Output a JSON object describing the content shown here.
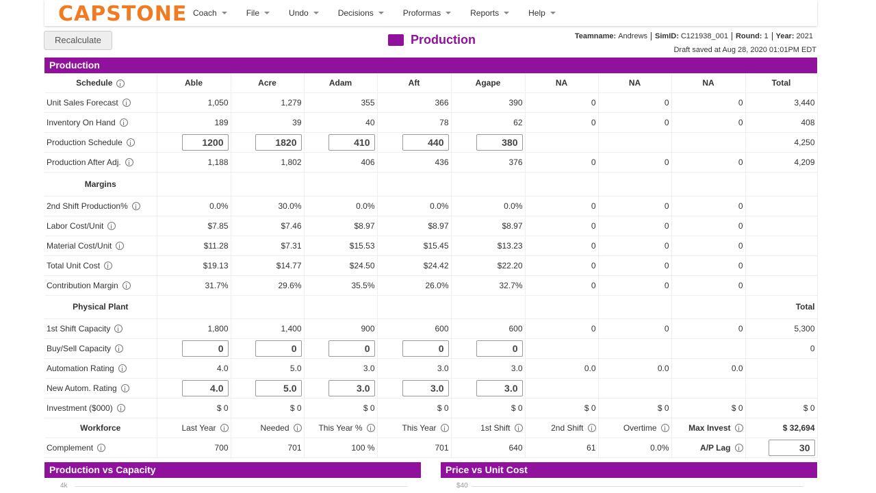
{
  "nav": {
    "logo": "CAPSTONE",
    "menu": [
      "Coach",
      "File",
      "Undo",
      "Decisions",
      "Proformas",
      "Reports",
      "Help"
    ]
  },
  "toolbar": {
    "button": "Recalculate",
    "page_title": "Production",
    "team_info": [
      {
        "label": "Teamname:",
        "value": "Andrews"
      },
      {
        "label": "SimID:",
        "value": "C121938_001"
      },
      {
        "label": "Round:",
        "value": "1"
      },
      {
        "label": "Year:",
        "value": "2021"
      }
    ],
    "saved": "Draft saved at Aug 28, 2020 01:01PM EDT"
  },
  "panel": {
    "title": "Production"
  },
  "table": {
    "sections": [
      {
        "title": "Schedule",
        "header": [
          "Able",
          "Acre",
          "Adam",
          "Aft",
          "Agape",
          "NA",
          "NA",
          "NA",
          "Total"
        ],
        "rows": [
          {
            "label": "Unit Sales Forecast",
            "cells": [
              "1,050",
              "1,279",
              "355",
              "366",
              "390",
              "0",
              "0",
              "0",
              "3,440"
            ]
          },
          {
            "label": "Inventory On Hand",
            "cells": [
              "189",
              "39",
              "40",
              "78",
              "62",
              "0",
              "0",
              "0",
              "408"
            ]
          },
          {
            "label": "Production Schedule",
            "cells": [
              "1200",
              "1820",
              "410",
              "440",
              "380",
              null,
              null,
              null,
              "4,250"
            ],
            "input_columns": [
              0,
              1,
              2,
              3,
              4
            ]
          },
          {
            "label": "Production After Adj.",
            "cells": [
              "1,188",
              "1,802",
              "406",
              "436",
              "376",
              "0",
              "0",
              "0",
              "4,209"
            ]
          }
        ]
      },
      {
        "title": "Margins",
        "rows": [
          {
            "label": "2nd Shift Production%",
            "cells": [
              "0.0%",
              "30.0%",
              "0.0%",
              "0.0%",
              "0.0%",
              "0",
              "0",
              "0",
              null
            ]
          },
          {
            "label": "Labor Cost/Unit",
            "cells": [
              "$7.85",
              "$7.46",
              "$8.97",
              "$8.97",
              "$8.97",
              "0",
              "0",
              "0",
              null
            ]
          },
          {
            "label": "Material Cost/Unit",
            "cells": [
              "$11.28",
              "$7.31",
              "$15.53",
              "$15.45",
              "$13.23",
              "0",
              "0",
              "0",
              null
            ]
          },
          {
            "label": "Total Unit Cost",
            "cells": [
              "$19.13",
              "$14.77",
              "$24.50",
              "$24.42",
              "$22.20",
              "0",
              "0",
              "0",
              null
            ]
          },
          {
            "label": "Contribution Margin",
            "cells": [
              "31.7%",
              "29.6%",
              "35.5%",
              "26.0%",
              "32.7%",
              "0",
              "0",
              "0",
              null
            ]
          }
        ]
      },
      {
        "title": "Physical Plant",
        "header": [
          null,
          null,
          null,
          null,
          null,
          null,
          null,
          null,
          "Total"
        ],
        "rows": [
          {
            "label": "1st Shift Capacity",
            "cells": [
              "1,800",
              "1,400",
              "900",
              "600",
              "600",
              "0",
              "0",
              "0",
              "5,300"
            ]
          },
          {
            "label": "Buy/Sell Capacity",
            "cells": [
              "0",
              "0",
              "0",
              "0",
              "0",
              null,
              null,
              null,
              "0"
            ],
            "input_columns": [
              0,
              1,
              2,
              3,
              4
            ]
          },
          {
            "label": "Automation Rating",
            "cells": [
              "4.0",
              "5.0",
              "3.0",
              "3.0",
              "3.0",
              "0.0",
              "0.0",
              "0.0",
              null
            ]
          },
          {
            "label": "New Autom. Rating",
            "cells": [
              "4.0",
              "5.0",
              "3.0",
              "3.0",
              "3.0",
              null,
              null,
              null,
              null
            ],
            "input_columns": [
              0,
              1,
              2,
              3,
              4
            ]
          },
          {
            "label": "Investment ($000)",
            "cells": [
              "$ 0",
              "$ 0",
              "$ 0",
              "$ 0",
              "$ 0",
              "$ 0",
              "$ 0",
              "$ 0",
              "$ 0"
            ]
          }
        ]
      },
      {
        "title": "Workforce",
        "header": [
          "Last Year",
          "Needed",
          "This Year %",
          "This Year",
          "1st Shift",
          "2nd Shift",
          "Overtime",
          "Max Invest",
          "$ 32,694"
        ],
        "rows": [
          {
            "label": "Complement",
            "cells": [
              "700",
              "701",
              "100 %",
              "701",
              "640",
              "61",
              "0.0%",
              "A/P Lag",
              "30"
            ],
            "input_columns": [
              8
            ]
          }
        ]
      }
    ]
  },
  "bottom_panels": [
    {
      "title": "Production vs Capacity",
      "axis_label": "4k"
    },
    {
      "title": "Price vs Unit Cost",
      "axis_label": "$40"
    }
  ]
}
